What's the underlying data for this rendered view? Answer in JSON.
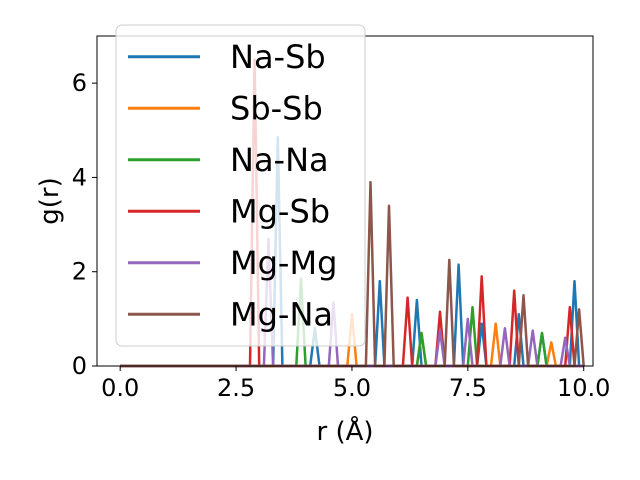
{
  "chart_data": {
    "type": "line",
    "title": "",
    "xlabel": "r (Å)",
    "ylabel": "g(r)",
    "xlim": [
      -0.5,
      10.2
    ],
    "ylim": [
      0,
      7.0
    ],
    "xticks": [
      0.0,
      2.5,
      5.0,
      7.5,
      10.0
    ],
    "xtick_labels": [
      "0.0",
      "2.5",
      "5.0",
      "7.5",
      "10.0"
    ],
    "yticks": [
      0,
      2,
      4,
      6
    ],
    "ytick_labels": [
      "0",
      "2",
      "4",
      "6"
    ],
    "grid": false,
    "legend_position": "top-left",
    "series": [
      {
        "name": "Na-Sb",
        "color": "#1f77b4",
        "x": [
          0,
          3.3,
          3.4,
          3.5,
          4.1,
          4.2,
          4.3,
          5.5,
          5.6,
          5.7,
          6.3,
          6.4,
          6.5,
          7.2,
          7.3,
          7.4,
          7.7,
          7.8,
          7.9,
          8.5,
          8.6,
          8.7,
          9.0,
          9.1,
          9.2,
          9.7,
          9.8,
          9.9,
          10.0
        ],
        "y": [
          0,
          0,
          4.85,
          0,
          0,
          0.8,
          0,
          0,
          1.8,
          0,
          0,
          1.4,
          0,
          0,
          2.15,
          0,
          0,
          0.9,
          0,
          0,
          1.1,
          0,
          0,
          0.7,
          0,
          0,
          1.8,
          0,
          0
        ]
      },
      {
        "name": "Sb-Sb",
        "color": "#ff7f0e",
        "x": [
          0,
          4.9,
          5.0,
          5.1,
          6.4,
          6.5,
          6.6,
          8.0,
          8.1,
          8.2,
          9.2,
          9.3,
          9.4,
          10.0
        ],
        "y": [
          0,
          0,
          1.1,
          0,
          0,
          0.7,
          0,
          0,
          0.9,
          0,
          0,
          0.5,
          0,
          0
        ]
      },
      {
        "name": "Na-Na",
        "color": "#2ca02c",
        "x": [
          0,
          3.8,
          3.9,
          4.0,
          6.4,
          6.5,
          6.6,
          7.5,
          7.6,
          7.7,
          9.0,
          9.1,
          9.2,
          10.0
        ],
        "y": [
          0,
          0,
          1.85,
          0,
          0,
          0.7,
          0,
          0,
          1.25,
          0,
          0,
          0.7,
          0,
          0
        ]
      },
      {
        "name": "Mg-Sb",
        "color": "#d62728",
        "x": [
          0,
          2.8,
          2.9,
          3.0,
          6.1,
          6.2,
          6.3,
          6.8,
          6.9,
          7.0,
          7.7,
          7.8,
          7.9,
          8.4,
          8.5,
          8.6,
          9.6,
          9.7,
          9.8,
          10.0
        ],
        "y": [
          0,
          0,
          6.5,
          0,
          0,
          1.45,
          0,
          0,
          1.15,
          0,
          0,
          1.9,
          0,
          0,
          1.6,
          0,
          0,
          1.25,
          0,
          0
        ]
      },
      {
        "name": "Mg-Mg",
        "color": "#9467bd",
        "x": [
          0,
          3.1,
          3.2,
          3.3,
          4.5,
          4.6,
          4.7,
          6.8,
          6.9,
          7.0,
          7.4,
          7.5,
          7.6,
          8.2,
          8.3,
          8.4,
          8.8,
          8.9,
          9.0,
          9.5,
          9.6,
          9.7,
          10.0
        ],
        "y": [
          0,
          0,
          2.7,
          0,
          0,
          1.35,
          0,
          0,
          0.75,
          0,
          0,
          1.0,
          0,
          0,
          0.8,
          0,
          0,
          0.75,
          0,
          0,
          0.6,
          0,
          0
        ]
      },
      {
        "name": "Mg-Na",
        "color": "#8c564b",
        "x": [
          0,
          5.3,
          5.4,
          5.5,
          5.7,
          5.8,
          5.9,
          7.0,
          7.1,
          7.2,
          8.6,
          8.7,
          8.8,
          9.8,
          9.9,
          10.0
        ],
        "y": [
          0,
          0,
          3.9,
          0,
          0,
          3.4,
          0,
          0,
          2.25,
          0,
          0,
          1.5,
          0,
          0,
          1.2,
          0
        ]
      }
    ]
  }
}
